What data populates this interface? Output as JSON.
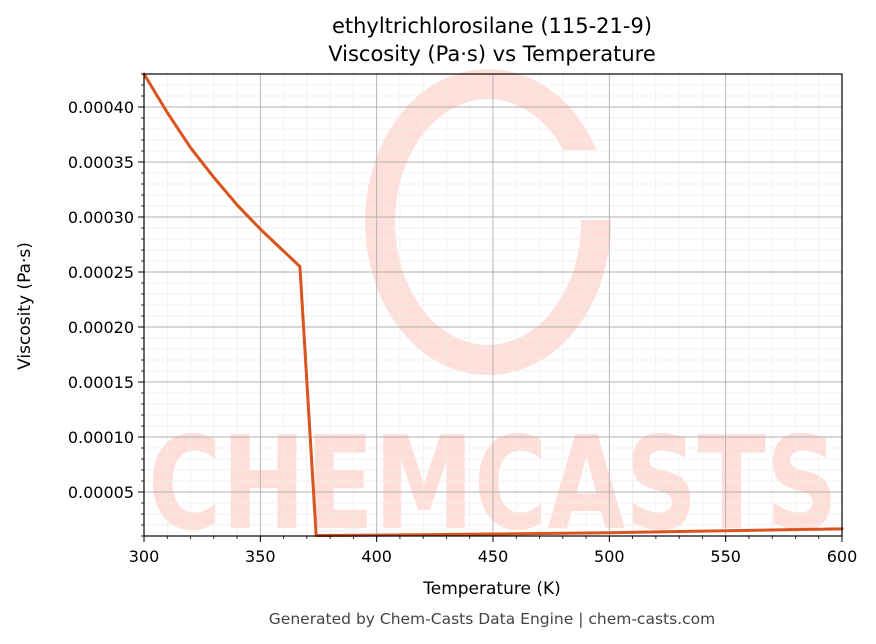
{
  "chart_data": {
    "type": "line",
    "title": "ethyltrichlorosilane (115-21-9)",
    "subtitle": "Viscosity (Pa·s) vs Temperature",
    "xlabel": "Temperature (K)",
    "ylabel": "Viscosity (Pa·s)",
    "xlim": [
      300,
      600
    ],
    "ylim": [
      1e-05,
      0.00043
    ],
    "x_ticks": [
      300,
      350,
      400,
      450,
      500,
      550,
      600
    ],
    "x_tick_labels": [
      "300",
      "350",
      "400",
      "450",
      "500",
      "550",
      "600"
    ],
    "y_ticks": [
      5e-05,
      0.0001,
      0.00015,
      0.0002,
      0.00025,
      0.0003,
      0.00035,
      0.0004
    ],
    "y_tick_labels": [
      "0.00005",
      "0.00010",
      "0.00015",
      "0.00020",
      "0.00025",
      "0.00030",
      "0.00035",
      "0.00040"
    ],
    "grid": true,
    "series": [
      {
        "color": "#d9541e",
        "x": [
          300,
          310,
          320,
          330,
          340,
          350,
          360,
          367,
          374,
          400,
          450,
          500,
          550,
          600
        ],
        "y": [
          0.00043,
          0.000395,
          0.000363,
          0.000336,
          0.000311,
          0.000289,
          0.000269,
          0.000255,
          1.05e-05,
          1.08e-05,
          1.18e-05,
          1.3e-05,
          1.48e-05,
          1.65e-05
        ]
      }
    ],
    "watermark": "CHEMCASTS"
  },
  "footer": "Generated by Chem-Casts Data Engine | chem-casts.com"
}
